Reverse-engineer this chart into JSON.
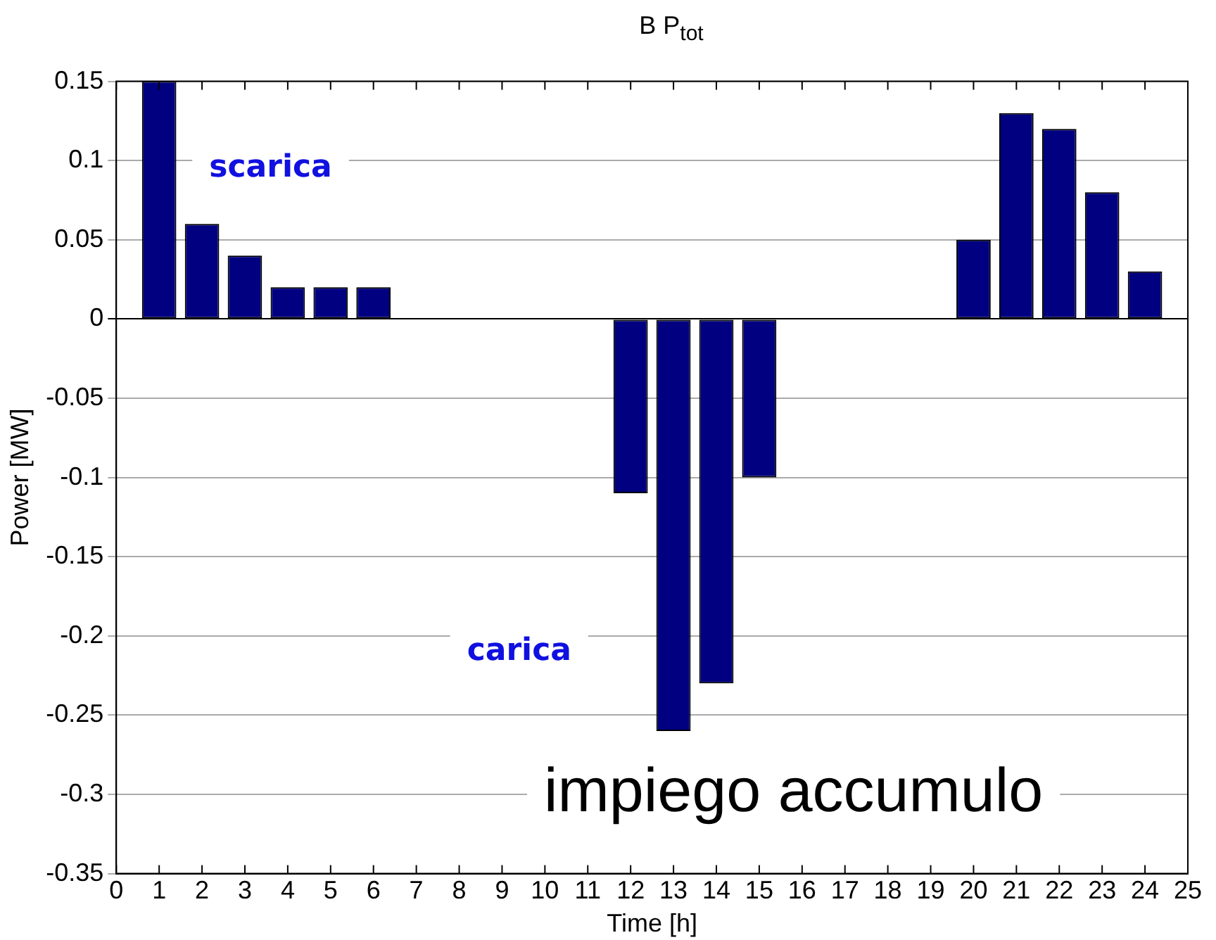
{
  "chart_data": {
    "type": "bar",
    "title": "B P$_{tot}$",
    "xlabel": "Time [h]",
    "ylabel": "Power [MW]",
    "x": [
      1,
      2,
      3,
      4,
      5,
      6,
      7,
      8,
      9,
      10,
      11,
      12,
      13,
      14,
      15,
      16,
      17,
      18,
      19,
      20,
      21,
      22,
      23,
      24
    ],
    "values": [
      0.15,
      0.06,
      0.04,
      0.02,
      0.02,
      0.02,
      0,
      0,
      0,
      0,
      0,
      -0.11,
      -0.26,
      -0.23,
      -0.1,
      0,
      0,
      0,
      0,
      0.05,
      0.13,
      0.12,
      0.08,
      0.03
    ],
    "color": "#000080",
    "xlim": [
      0,
      25
    ],
    "xticks": [
      0,
      1,
      2,
      3,
      4,
      5,
      6,
      7,
      8,
      9,
      10,
      11,
      12,
      13,
      14,
      15,
      16,
      17,
      18,
      19,
      20,
      21,
      22,
      23,
      24,
      25
    ],
    "ylim": [
      -0.35,
      0.15
    ],
    "yticks": [
      -0.35,
      -0.3,
      -0.25,
      -0.2,
      -0.15,
      -0.1,
      -0.05,
      0,
      0.05,
      0.1,
      0.15
    ],
    "grid": "y",
    "legend": false,
    "annotations": [
      "scarica",
      "carica",
      "impiego accumulo"
    ]
  }
}
